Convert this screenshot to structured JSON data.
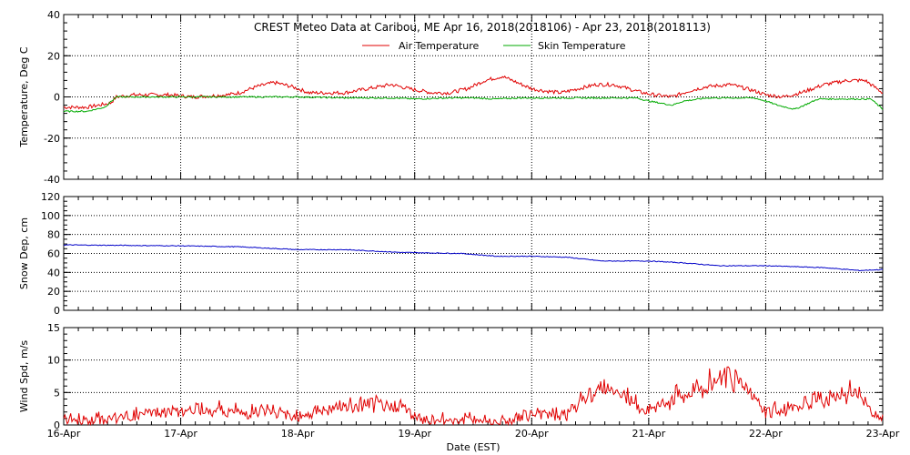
{
  "chart_data": {
    "type": "line",
    "title": "CREST Meteo Data at Caribou, ME   Apr 16, 2018(2018106) - Apr 23, 2018(2018113)",
    "xlabel": "Date (EST)",
    "x_ticks": [
      "16-Apr",
      "17-Apr",
      "18-Apr",
      "19-Apr",
      "20-Apr",
      "21-Apr",
      "22-Apr",
      "23-Apr"
    ],
    "x_range": [
      "2018-04-16",
      "2018-04-23"
    ],
    "grid": true,
    "colors": {
      "air": "#e00000",
      "skin": "#00aa00",
      "snow": "#0000c8",
      "wind": "#e00000"
    },
    "panels": [
      {
        "ylabel": "Temperature, Deg C",
        "ylim": [
          -40,
          40
        ],
        "yticks": [
          "40",
          "20",
          "0",
          "-20",
          "-40"
        ],
        "legend": "top-center",
        "series": [
          {
            "name": "Air Temperature",
            "x": [
              0,
              0.2,
              0.4,
              0.45,
              0.6,
              0.9,
              1.1,
              1.4,
              1.5,
              1.65,
              1.8,
              1.95,
              2.1,
              2.4,
              2.5,
              2.7,
              2.8,
              2.95,
              3.15,
              3.3,
              3.45,
              3.6,
              3.75,
              4.0,
              4.1,
              4.25,
              4.4,
              4.55,
              4.7,
              4.95,
              5.05,
              5.2,
              5.35,
              5.5,
              5.7,
              5.9,
              6.0,
              6.15,
              6.3,
              6.5,
              6.7,
              6.85,
              7.0
            ],
            "y": [
              -5,
              -5,
              -3,
              0,
              1,
              1,
              0,
              1,
              2,
              5,
              7,
              5,
              2,
              2,
              3,
              5,
              6,
              4,
              2,
              2,
              4,
              8,
              10,
              4,
              3,
              2,
              4,
              6,
              6,
              2,
              1,
              0,
              3,
              5,
              6,
              3,
              1,
              0,
              2,
              6,
              8,
              8,
              2
            ]
          },
          {
            "name": "Skin Temperature",
            "x": [
              0,
              0.2,
              0.35,
              0.45,
              0.6,
              0.9,
              1.1,
              1.4,
              1.7,
              2.0,
              2.4,
              2.8,
              3.0,
              3.3,
              3.5,
              3.7,
              3.9,
              4.1,
              4.5,
              4.9,
              5.0,
              5.2,
              5.3,
              5.5,
              5.9,
              6.0,
              6.1,
              6.25,
              6.45,
              6.9,
              7.0
            ],
            "y": [
              -7,
              -7,
              -5,
              0,
              0,
              0,
              0,
              0,
              0,
              0,
              -0.5,
              -0.5,
              -1,
              -0.5,
              -0.5,
              -1,
              -0.5,
              -0.5,
              -0.5,
              -0.5,
              -2,
              -4,
              -2,
              -0.5,
              -0.5,
              -2,
              -4,
              -6,
              -1,
              -1,
              -6
            ]
          }
        ]
      },
      {
        "ylabel": "Snow Dep, cm",
        "ylim": [
          0,
          120
        ],
        "yticks": [
          "120",
          "100",
          "80",
          "60",
          "40",
          "20",
          "0"
        ],
        "series": [
          {
            "name": "",
            "x": [
              0,
              0.5,
              1.0,
              1.5,
              2.0,
              2.4,
              2.9,
              3.4,
              3.7,
              4.0,
              4.3,
              4.6,
              5.0,
              5.3,
              5.6,
              6.0,
              6.5,
              6.8,
              7.0
            ],
            "y": [
              69,
              68.5,
              68,
              67,
              64,
              64,
              61,
              60,
              57,
              57,
              56,
              52,
              52,
              50,
              47,
              47,
              45,
              42,
              43
            ]
          }
        ]
      },
      {
        "ylabel": "Wind Spd, m/s",
        "ylim": [
          0,
          15
        ],
        "yticks": [
          "15",
          "10",
          "5",
          "0"
        ],
        "series": [
          {
            "name": "",
            "x": [
              0,
              0.2,
              0.5,
              0.8,
              1.0,
              1.2,
              1.5,
              1.8,
              2.0,
              2.3,
              2.6,
              2.9,
              3.0,
              3.2,
              3.5,
              3.7,
              3.9,
              4.1,
              4.3,
              4.45,
              4.6,
              4.75,
              4.9,
              5.0,
              5.2,
              5.4,
              5.6,
              5.7,
              5.8,
              5.9,
              6.0,
              6.2,
              6.4,
              6.6,
              6.8,
              6.9,
              7.0
            ],
            "y": [
              1,
              0.6,
              1.2,
              2,
              2,
              2.5,
              2,
              2,
              1.5,
              2.5,
              3,
              3,
              1,
              0.7,
              1,
              0.5,
              1,
              2,
              1.5,
              4,
              6,
              5.5,
              3,
              2,
              4,
              5,
              7,
              8,
              6,
              5,
              2,
              2.5,
              3.5,
              4.5,
              5,
              2,
              1
            ]
          }
        ]
      }
    ]
  }
}
